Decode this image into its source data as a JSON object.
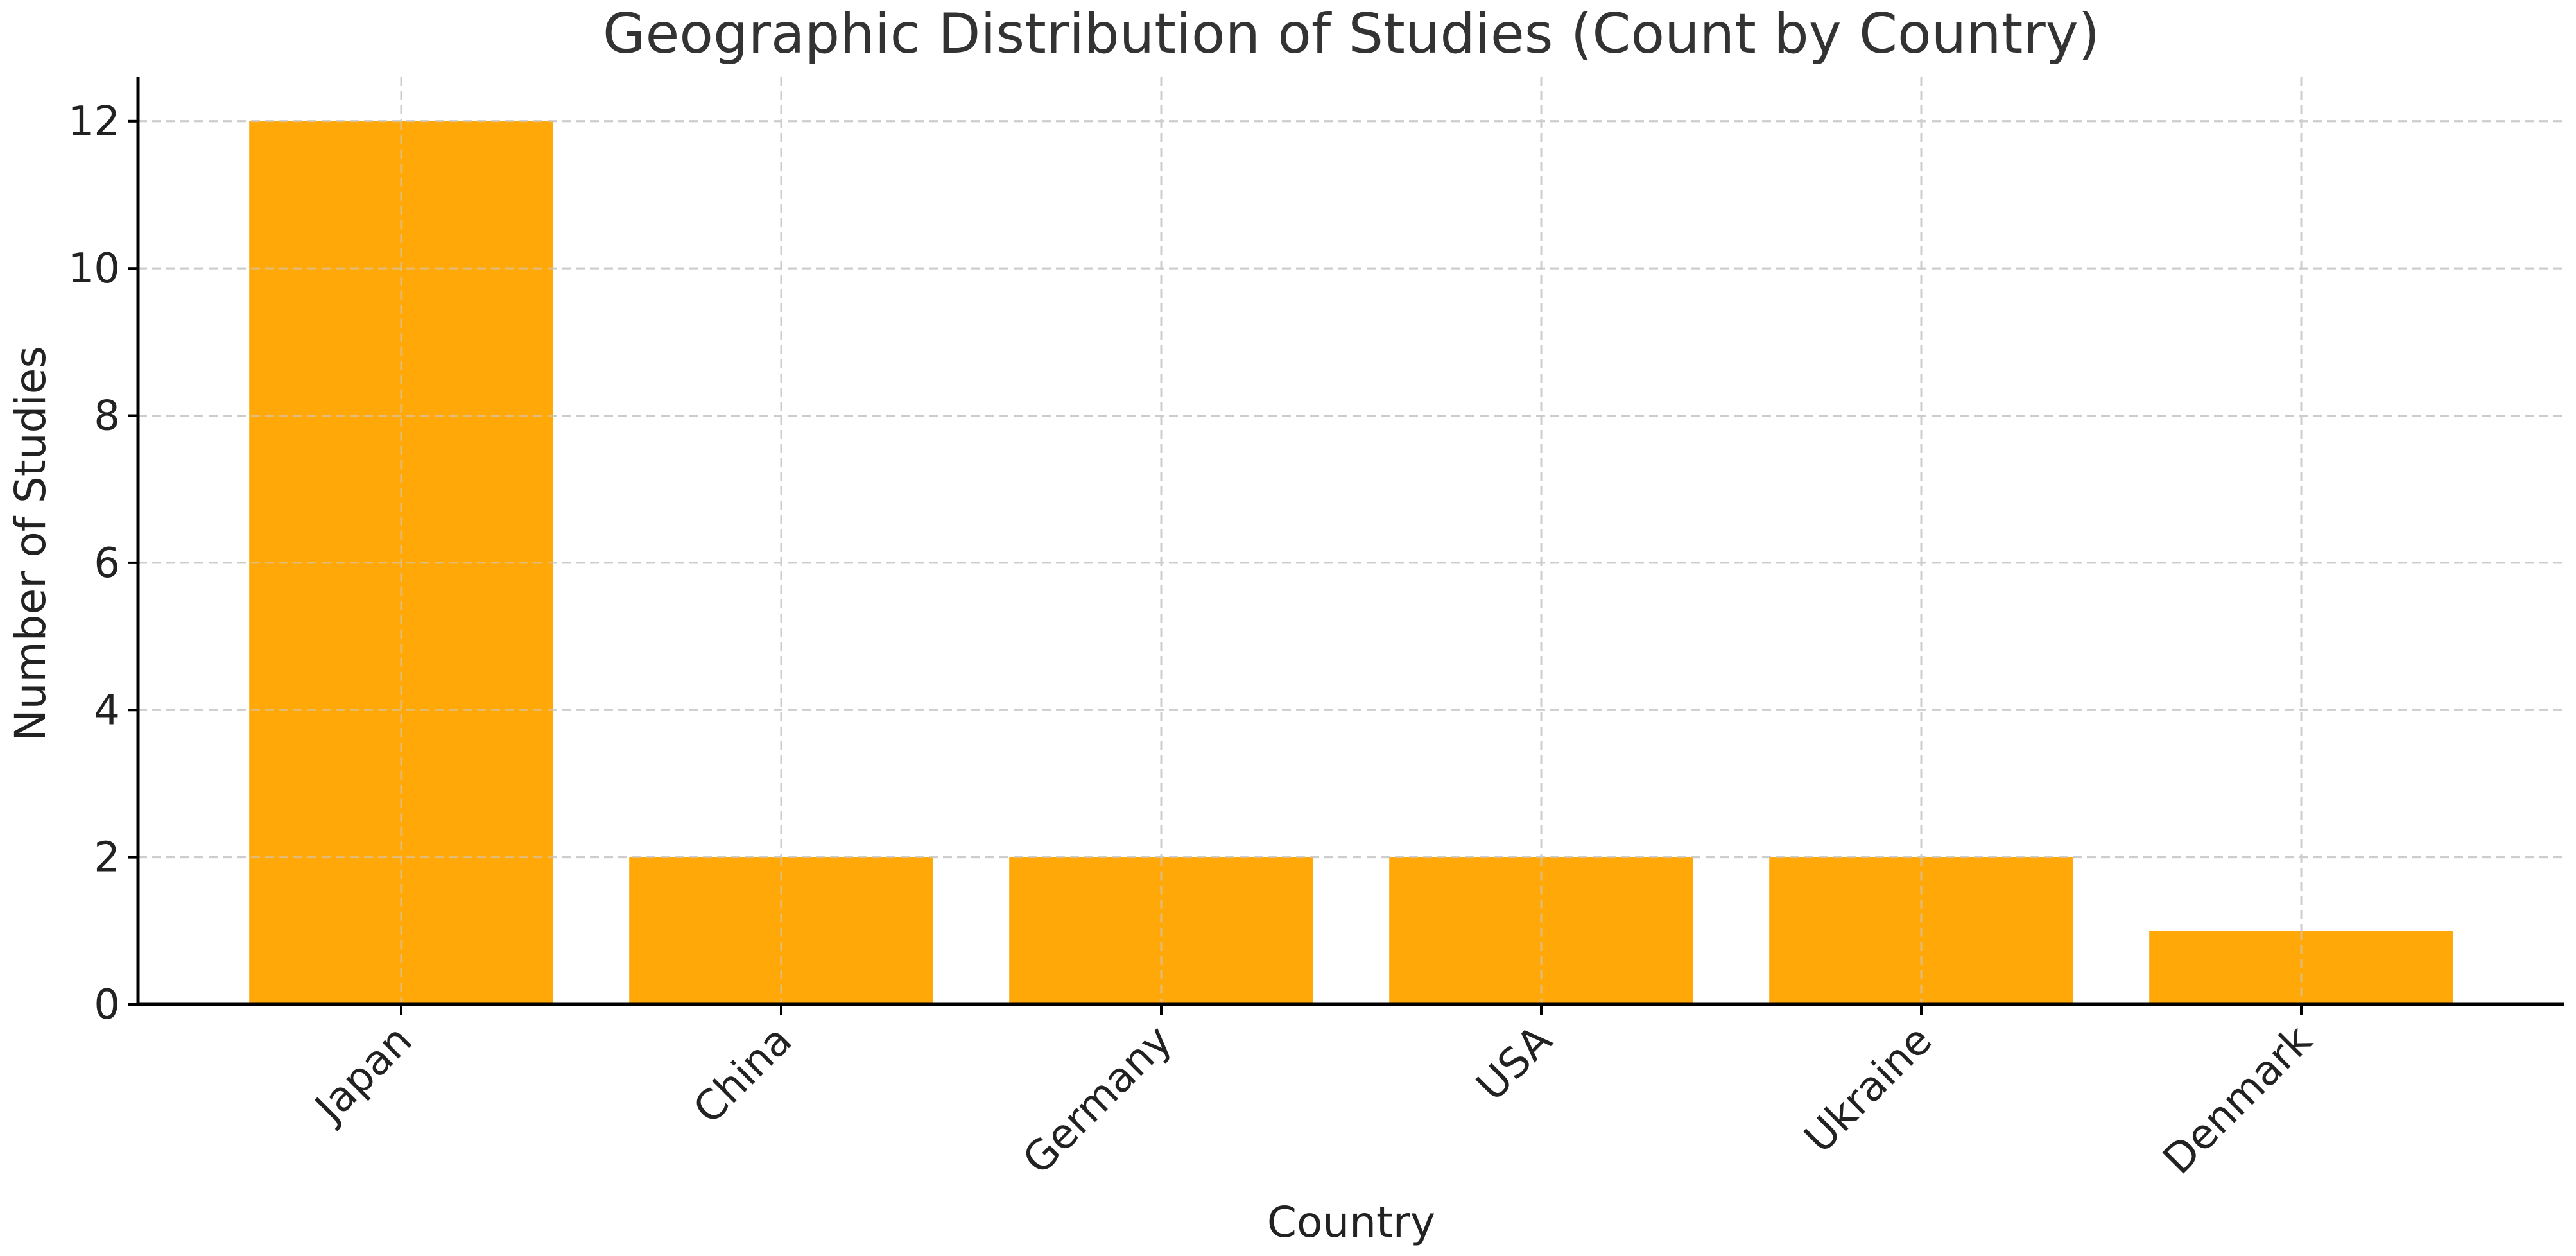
{
  "chart_data": {
    "type": "bar",
    "title": "Geographic Distribution of Studies (Count by Country)",
    "xlabel": "Country",
    "ylabel": "Number of Studies",
    "categories": [
      "Japan",
      "China",
      "Germany",
      "USA",
      "Ukraine",
      "Denmark"
    ],
    "values": [
      12,
      2,
      2,
      2,
      2,
      1
    ],
    "ylim": [
      0,
      12.6
    ],
    "yticks": [
      0,
      2,
      4,
      6,
      8,
      10,
      12
    ],
    "grid": true,
    "bar_color": "#FFA500",
    "legend": "none"
  }
}
